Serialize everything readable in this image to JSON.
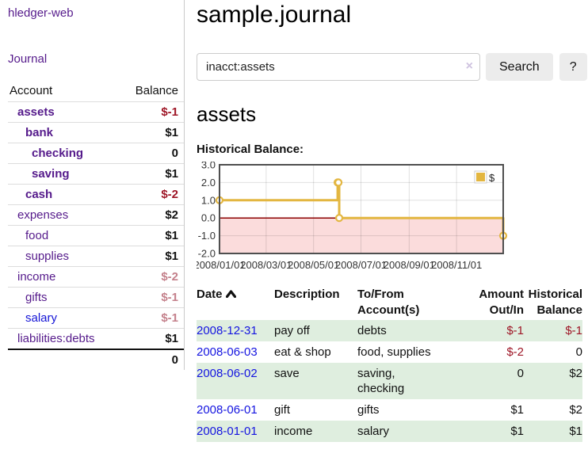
{
  "palette": {
    "link_purple": "#551a8b",
    "link_blue": "#1414d6",
    "date_link_blue": "#1414e0",
    "negative_strong": "#9e1626",
    "negative_muted": "#c4808b",
    "row_stripe_green": "#dfeedf",
    "button_gray": "#ececec",
    "chart_line": "#e3b640",
    "chart_negative_fill": "#fbdcdc",
    "chart_zero_line": "#8b0000",
    "chart_border": "#4f4f4f"
  },
  "sidebar": {
    "app_title": "hledger-web",
    "nav_journal": "Journal",
    "accounts_header": {
      "account": "Account",
      "balance": "Balance"
    },
    "accounts": [
      {
        "name": "assets",
        "balance": "$-1"
      },
      {
        "name": "bank",
        "balance": "$1"
      },
      {
        "name": "checking",
        "balance": "0"
      },
      {
        "name": "saving",
        "balance": "$1"
      },
      {
        "name": "cash",
        "balance": "$-2"
      },
      {
        "name": "expenses",
        "balance": "$2"
      },
      {
        "name": "food",
        "balance": "$1"
      },
      {
        "name": "supplies",
        "balance": "$1"
      },
      {
        "name": "income",
        "balance": "$-2"
      },
      {
        "name": "gifts",
        "balance": "$-1"
      },
      {
        "name": "salary",
        "balance": "$-1"
      },
      {
        "name": "liabilities:debts",
        "balance": "$1"
      }
    ],
    "total": "0"
  },
  "main": {
    "title": "sample.journal",
    "search": {
      "value": "inacct:assets",
      "clear_icon": "×",
      "search_button": "Search",
      "help_button": "?"
    },
    "account_heading": "assets",
    "chart_heading": "Historical Balance:"
  },
  "chart_data": {
    "type": "line",
    "title": "Historical Balance",
    "step": "after",
    "x": [
      "2008-01-01",
      "2008-06-01",
      "2008-06-02",
      "2008-06-03",
      "2008-12-31"
    ],
    "series": [
      {
        "name": "$",
        "values": [
          1,
          2,
          2,
          0,
          -1
        ]
      }
    ],
    "x_range": [
      "2008-01-01",
      "2008-12-31"
    ],
    "ylim": [
      -2,
      3
    ],
    "yticks": [
      3.0,
      2.0,
      1.0,
      0.0,
      -1.0,
      -2.0
    ],
    "xticks": [
      {
        "date": "2008-01-01",
        "label": "2008/01/01"
      },
      {
        "date": "2008-03-01",
        "label": "2008/03/01"
      },
      {
        "date": "2008-05-01",
        "label": "2008/05/01"
      },
      {
        "date": "2008-07-01",
        "label": "2008/07/01"
      },
      {
        "date": "2008-09-01",
        "label": "2008/09/01"
      },
      {
        "date": "2008-11-01",
        "label": "2008/11/01"
      }
    ],
    "legend": [
      {
        "label": "$",
        "color": "#e3b640"
      }
    ],
    "legend_position": "top-right",
    "grid": true,
    "negative_region_shaded": true
  },
  "register": {
    "headers": {
      "date": {
        "line1": "Date",
        "line2": ""
      },
      "desc": {
        "line1": "Description",
        "line2": ""
      },
      "acct": {
        "line1": "To/From",
        "line2": "Account(s)"
      },
      "amount": {
        "line1": "Amount",
        "line2": "Out/In"
      },
      "balance": {
        "line1": "Historical",
        "line2": "Balance"
      }
    },
    "sort": {
      "column": "Date",
      "direction": "ascending"
    },
    "rows": [
      {
        "date": "2008-12-31",
        "description": "pay off",
        "accounts": "debts",
        "amount": "$-1",
        "balance": "$-1"
      },
      {
        "date": "2008-06-03",
        "description": "eat & shop",
        "accounts": "food, supplies",
        "amount": "$-2",
        "balance": "0"
      },
      {
        "date": "2008-06-02",
        "description": "save",
        "accounts": "saving, checking",
        "amount": "0",
        "balance": "$2"
      },
      {
        "date": "2008-06-01",
        "description": "gift",
        "accounts": "gifts",
        "amount": "$1",
        "balance": "$2"
      },
      {
        "date": "2008-01-01",
        "description": "income",
        "accounts": "salary",
        "amount": "$1",
        "balance": "$1"
      }
    ]
  }
}
